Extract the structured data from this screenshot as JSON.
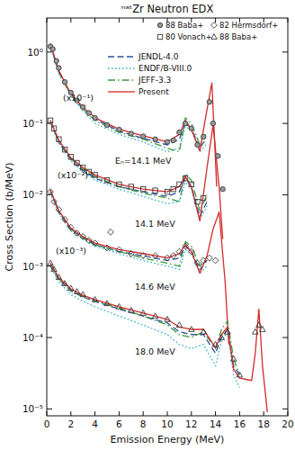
{
  "chart_data": {
    "type": "line",
    "title": "ⁿᵃᵗZr Neutron EDX",
    "x_label": "Emission Energy (MeV)",
    "y_label": "Cross Section (b/MeV)",
    "xlim": [
      0,
      20
    ],
    "ylim": [
      8e-06,
      3
    ],
    "xticks": [
      0,
      2,
      4,
      6,
      8,
      10,
      12,
      14,
      16,
      18,
      20
    ],
    "yticks": [
      {
        "value": 1,
        "label": "10⁰"
      },
      {
        "value": 0.1,
        "label": "10⁻¹"
      },
      {
        "value": 0.01,
        "label": "10⁻²"
      },
      {
        "value": 0.001,
        "label": "10⁻³"
      },
      {
        "value": 0.0001,
        "label": "10⁻⁴"
      },
      {
        "value": 1e-05,
        "label": "10⁻⁵"
      }
    ],
    "log": "y",
    "grid": false,
    "legend": "upper right",
    "annotations": [
      "(x10⁻¹)",
      "Eₙ=14.1 MeV",
      "(x10⁻²)",
      "14.1 MeV",
      "(x10⁻³)",
      "14.6 MeV",
      "18.0 MeV"
    ],
    "series": [
      {
        "name": "JENDL-4.0",
        "type": "line",
        "line_style": "dashed",
        "color": "#2c4f9e",
        "x": [
          0.3,
          1,
          2,
          3,
          4,
          6,
          8,
          10,
          11,
          11.5,
          12,
          12.7,
          13.2
        ],
        "values": [
          1.25,
          0.52,
          0.25,
          0.16,
          0.115,
          0.078,
          0.062,
          0.05,
          0.06,
          0.1,
          0.085,
          0.045,
          0.06
        ]
      },
      {
        "name": "ENDF/B-VIII.0",
        "type": "line",
        "line_style": "dotted",
        "color": "#2fb0c6",
        "x": [
          0.3,
          1,
          2,
          3,
          4,
          6,
          8,
          10,
          11,
          11.5,
          12,
          12.7,
          13.2
        ],
        "values": [
          1.2,
          0.5,
          0.24,
          0.15,
          0.1,
          0.07,
          0.055,
          0.04,
          0.045,
          0.09,
          0.08,
          0.04,
          0.05
        ]
      },
      {
        "name": "JEFF-3.3",
        "type": "line",
        "line_style": "dashdot",
        "color": "#3a9a3a",
        "x": [
          0.3,
          1,
          2,
          3,
          4,
          6,
          8,
          10,
          11,
          11.5,
          12,
          12.7,
          13.2
        ],
        "values": [
          1.3,
          0.54,
          0.25,
          0.16,
          0.11,
          0.075,
          0.06,
          0.045,
          0.04,
          0.12,
          0.1,
          0.05,
          0.07
        ]
      },
      {
        "name": "Present",
        "type": "line",
        "line_style": "solid",
        "color": "#d42a2a",
        "x": [
          0.3,
          1,
          2,
          3,
          4,
          6,
          8,
          10,
          11,
          11.5,
          12,
          12.7,
          13.2,
          13.7,
          14.1
        ],
        "values": [
          1.3,
          0.55,
          0.26,
          0.17,
          0.12,
          0.083,
          0.067,
          0.055,
          0.07,
          0.11,
          0.083,
          0.041,
          0.127,
          0.37,
          0.013
        ]
      },
      {
        "name": "88 Baba+",
        "type": "scatter",
        "marker": "circle",
        "color": "#3a3a3a",
        "x": [
          0.3,
          0.5,
          0.8,
          1,
          1.5,
          2,
          2.5,
          3,
          3.5,
          4,
          5,
          6,
          7,
          8,
          9,
          10,
          10.5,
          11,
          11.5,
          12,
          12.5,
          13,
          13.5,
          13.8,
          14.2,
          14.6
        ],
        "values": [
          1.2,
          1.1,
          0.75,
          0.6,
          0.38,
          0.27,
          0.21,
          0.17,
          0.14,
          0.12,
          0.095,
          0.082,
          0.072,
          0.066,
          0.06,
          0.055,
          0.058,
          0.075,
          0.1,
          0.085,
          0.05,
          0.065,
          0.2,
          0.1,
          0.035,
          0.012
        ]
      },
      {
        "name": "JENDL-4.0",
        "type": "line",
        "line_style": "dashed",
        "color": "#2c4f9e",
        "x": [
          0.3,
          1,
          2,
          3,
          4,
          6,
          8,
          10,
          11,
          11.5,
          12,
          12.7,
          13.3
        ],
        "values": [
          0.105,
          0.055,
          0.031,
          0.022,
          0.017,
          0.013,
          0.011,
          0.0095,
          0.011,
          0.017,
          0.013,
          0.005,
          0.008
        ]
      },
      {
        "name": "ENDF/B-VIII.0",
        "type": "line",
        "line_style": "dotted",
        "color": "#2fb0c6",
        "x": [
          0.3,
          1,
          2,
          3,
          4,
          6,
          8,
          10,
          11,
          11.5,
          12,
          12.7,
          13.3
        ],
        "values": [
          0.1,
          0.053,
          0.03,
          0.021,
          0.016,
          0.012,
          0.0095,
          0.0075,
          0.008,
          0.015,
          0.012,
          0.0045,
          0.007
        ]
      },
      {
        "name": "JEFF-3.3",
        "type": "line",
        "line_style": "dashdot",
        "color": "#3a9a3a",
        "x": [
          0.3,
          1,
          2,
          3,
          4,
          6,
          8,
          10,
          11,
          11.5,
          12,
          12.7,
          13.3
        ],
        "values": [
          0.11,
          0.057,
          0.032,
          0.023,
          0.018,
          0.013,
          0.0105,
          0.009,
          0.008,
          0.02,
          0.016,
          0.006,
          0.01
        ]
      },
      {
        "name": "Present",
        "type": "line",
        "line_style": "solid",
        "color": "#d42a2a",
        "x": [
          0.3,
          1,
          2,
          3,
          4,
          6,
          8,
          10,
          11,
          11.5,
          12,
          12.7,
          13.3,
          13.8,
          14.3,
          14.6
        ],
        "values": [
          0.11,
          0.058,
          0.033,
          0.024,
          0.019,
          0.014,
          0.012,
          0.011,
          0.013,
          0.018,
          0.013,
          0.0043,
          0.024,
          0.096,
          0.013,
          0.0024
        ]
      },
      {
        "name": "80 Vonach+",
        "type": "scatter",
        "marker": "square",
        "color": "#3a3a3a",
        "x": [
          0.3,
          0.6,
          1,
          1.5,
          2,
          2.5,
          3,
          3.5,
          4,
          5,
          6,
          7,
          8,
          9,
          10,
          10.5,
          11,
          11.5,
          12,
          12.5,
          13
        ],
        "values": [
          0.11,
          0.085,
          0.06,
          0.043,
          0.034,
          0.028,
          0.024,
          0.021,
          0.019,
          0.016,
          0.014,
          0.013,
          0.012,
          0.0115,
          0.011,
          0.012,
          0.014,
          0.017,
          0.014,
          0.008,
          0.009
        ]
      },
      {
        "name": "JENDL-4.0",
        "type": "line",
        "line_style": "dashed",
        "color": "#2c4f9e",
        "x": [
          0.3,
          1,
          2,
          3,
          4,
          6,
          8,
          10,
          11,
          11.5,
          12,
          12.7,
          13.3
        ],
        "values": [
          0.011,
          0.0057,
          0.0032,
          0.0025,
          0.002,
          0.0016,
          0.0014,
          0.0012,
          0.0013,
          0.0019,
          0.0016,
          0.0009,
          0.0012
        ]
      },
      {
        "name": "ENDF/B-VIII.0",
        "type": "line",
        "line_style": "dotted",
        "color": "#2fb0c6",
        "x": [
          0.3,
          1,
          2,
          3,
          4,
          6,
          8,
          10,
          11,
          11.5,
          12,
          12.7,
          13.3
        ],
        "values": [
          0.0105,
          0.0055,
          0.0031,
          0.0024,
          0.0019,
          0.0015,
          0.0012,
          0.001,
          0.0009,
          0.0017,
          0.0015,
          0.0008,
          0.001
        ]
      },
      {
        "name": "JEFF-3.3",
        "type": "line",
        "line_style": "dashdot",
        "color": "#3a9a3a",
        "x": [
          0.3,
          1,
          2,
          3,
          4,
          6,
          8,
          10,
          11,
          11.5,
          12,
          12.7,
          13.3
        ],
        "values": [
          0.0115,
          0.0059,
          0.0033,
          0.0025,
          0.002,
          0.0016,
          0.0013,
          0.0011,
          0.001,
          0.0022,
          0.0019,
          0.001,
          0.0013
        ]
      },
      {
        "name": "Present",
        "type": "line",
        "line_style": "solid",
        "color": "#d42a2a",
        "x": [
          0.3,
          1,
          2,
          3,
          4,
          6,
          8,
          10,
          11,
          11.5,
          12,
          12.7,
          13.3,
          13.8,
          14.3,
          14.8,
          15.1
        ],
        "values": [
          0.0116,
          0.006,
          0.0034,
          0.0026,
          0.0021,
          0.0017,
          0.0015,
          0.0013,
          0.0015,
          0.002,
          0.0016,
          0.0008,
          0.0014,
          0.0033,
          0.0057,
          0.0006,
          8e-05
        ]
      },
      {
        "name": "82 Hermsdorf+",
        "type": "scatter",
        "marker": "diamond",
        "color": "#3a3a3a",
        "x": [
          0.3,
          0.6,
          1,
          1.5,
          2,
          2.5,
          3,
          3.5,
          4,
          5,
          5.3,
          6,
          7,
          8,
          9,
          10,
          10.5,
          11,
          11.5,
          12,
          12.5,
          13,
          13.5,
          14
        ],
        "values": [
          0.011,
          0.008,
          0.0062,
          0.0045,
          0.0035,
          0.0029,
          0.0026,
          0.0023,
          0.0021,
          0.0018,
          0.003,
          0.0017,
          0.0015,
          0.0014,
          0.0014,
          0.0013,
          0.0014,
          0.0016,
          0.0019,
          0.0016,
          0.0011,
          0.0012,
          0.0013,
          0.0012
        ]
      },
      {
        "name": "JENDL-4.0",
        "type": "line",
        "line_style": "dashed",
        "color": "#2c4f9e",
        "x": [
          0.3,
          1,
          2,
          3,
          4,
          6,
          8,
          10,
          11,
          12,
          13,
          14,
          14.5,
          15,
          15.5,
          16
        ],
        "values": [
          0.001,
          0.00065,
          0.00045,
          0.00037,
          0.00032,
          0.00025,
          0.0002,
          0.00016,
          0.00012,
          0.00011,
          0.00011,
          6e-05,
          0.0001,
          0.00013,
          4e-05,
          3e-05
        ]
      },
      {
        "name": "ENDF/B-VIII.0",
        "type": "line",
        "line_style": "dotted",
        "color": "#2fb0c6",
        "x": [
          0.3,
          1,
          2,
          3,
          4,
          6,
          8,
          10,
          11,
          12,
          13,
          14,
          14.5,
          15,
          15.5,
          16
        ],
        "values": [
          0.001,
          0.0006,
          0.0004,
          0.00032,
          0.00027,
          0.0002,
          0.00015,
          0.00011,
          8e-05,
          7e-05,
          8e-05,
          4e-05,
          9e-05,
          0.00012,
          3e-05,
          2e-05
        ]
      },
      {
        "name": "JEFF-3.3",
        "type": "line",
        "line_style": "dashdot",
        "color": "#3a9a3a",
        "x": [
          0.3,
          1,
          2,
          3,
          4,
          6,
          8,
          10,
          11,
          12,
          13,
          14,
          14.5,
          15,
          15.5,
          16
        ],
        "values": [
          0.00105,
          0.00066,
          0.00046,
          0.00038,
          0.00033,
          0.00026,
          0.0002,
          0.00015,
          0.00011,
          0.0001,
          0.00012,
          7e-05,
          0.00013,
          0.00017,
          5e-05,
          3e-05
        ]
      },
      {
        "name": "Present",
        "type": "line",
        "line_style": "solid",
        "color": "#d42a2a",
        "x": [
          0.3,
          1,
          2,
          3,
          4,
          6,
          8,
          10,
          11,
          12,
          13,
          14,
          14.5,
          15,
          15.5,
          16,
          17,
          17.3,
          17.6,
          17.9,
          18.3
        ],
        "values": [
          0.0011,
          0.00069,
          0.00048,
          0.00039,
          0.00034,
          0.00027,
          0.00022,
          0.00018,
          0.00014,
          0.00013,
          0.00013,
          7.2e-05,
          0.00011,
          0.00014,
          3.6e-05,
          2.7e-05,
          2.5e-05,
          6e-05,
          0.00025,
          4e-05,
          9e-06
        ]
      },
      {
        "name": "88 Baba+",
        "type": "scatter",
        "marker": "triangle",
        "color": "#3a3a3a",
        "x": [
          0.3,
          0.6,
          1,
          1.5,
          2,
          2.5,
          3,
          4,
          5,
          6,
          7,
          8,
          9,
          10,
          11,
          12,
          13,
          14,
          14.5,
          15,
          15.5,
          16,
          17.3,
          17.6,
          17.9
        ],
        "values": [
          0.0011,
          0.0009,
          0.0007,
          0.00057,
          0.00049,
          0.00044,
          0.0004,
          0.00034,
          0.0003,
          0.00027,
          0.00024,
          0.00022,
          0.0002,
          0.00018,
          0.00015,
          0.00013,
          0.00012,
          8e-05,
          0.0001,
          0.00012,
          5e-05,
          3e-05,
          0.00012,
          0.00015,
          0.00013
        ]
      }
    ]
  }
}
